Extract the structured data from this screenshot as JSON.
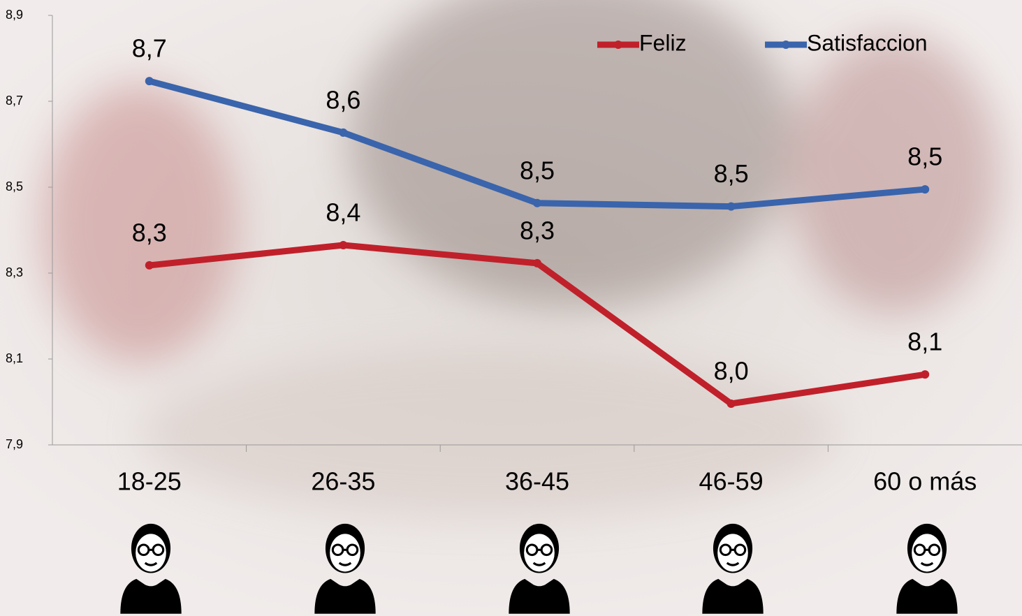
{
  "chart_data": {
    "type": "line",
    "categories": [
      "18-25",
      "26-35",
      "36-45",
      "46-59",
      "60 o más"
    ],
    "series": [
      {
        "name": "Feliz",
        "color": "#c0202a",
        "values": [
          8.318,
          8.365,
          8.323,
          7.996,
          8.064
        ],
        "value_labels": [
          "8,3",
          "8,4",
          "8,3",
          "8,0",
          "8,1"
        ]
      },
      {
        "name": "Satisfaccion",
        "color": "#3a64ac",
        "values": [
          8.747,
          8.627,
          8.463,
          8.455,
          8.495
        ],
        "value_labels": [
          "8,7",
          "8,6",
          "8,5",
          "8,5",
          "8,5"
        ]
      }
    ],
    "ylim": [
      7.9,
      8.9
    ],
    "yticks": [
      {
        "value": 7.9,
        "label": "7,9"
      },
      {
        "value": 8.1,
        "label": "8,1"
      },
      {
        "value": 8.3,
        "label": "8,3"
      },
      {
        "value": 8.5,
        "label": "8,5"
      },
      {
        "value": 8.7,
        "label": "8,7"
      },
      {
        "value": 8.9,
        "label": "8,9"
      }
    ],
    "legend": "top-right"
  }
}
